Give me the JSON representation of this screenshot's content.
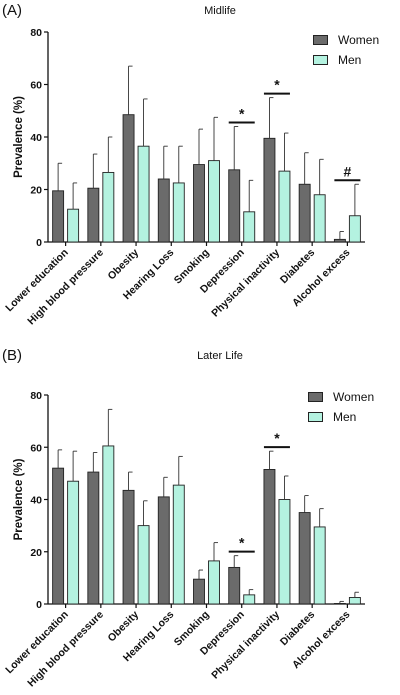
{
  "chart_data": [
    {
      "panel_label": "(A)",
      "title": "Midlife",
      "type": "bar",
      "ylabel": "Prevalence (%)",
      "ylim": [
        0,
        80
      ],
      "yticks": [
        0,
        20,
        40,
        60,
        80
      ],
      "categories": [
        "Lower education",
        "High blood pressure",
        "Obesity",
        "Hearing Loss",
        "Smoking",
        "Depression",
        "Physical inactivity",
        "Diabetes",
        "Alcohol excess"
      ],
      "series": [
        {
          "name": "Women",
          "color": "#6b6b6b",
          "values": [
            19.5,
            20.5,
            48.5,
            24,
            29.5,
            27.5,
            39.5,
            22,
            1
          ],
          "error": [
            10.5,
            13,
            18.5,
            12.5,
            13.5,
            16.5,
            15.5,
            12,
            3
          ]
        },
        {
          "name": "Men",
          "color": "#b4f2e0",
          "values": [
            12.5,
            26.5,
            36.5,
            22.5,
            31,
            11.5,
            27,
            18,
            10
          ],
          "error": [
            10,
            13.5,
            18,
            14,
            16.5,
            12,
            14.5,
            13.5,
            12
          ]
        }
      ],
      "annotations": [
        {
          "category_index": 5,
          "symbol": "*"
        },
        {
          "category_index": 6,
          "symbol": "*"
        },
        {
          "category_index": 8,
          "symbol": "#"
        }
      ],
      "legend_position": "top-right"
    },
    {
      "panel_label": "(B)",
      "title": "Later Life",
      "type": "bar",
      "ylabel": "Prevalence (%)",
      "ylim": [
        0,
        80
      ],
      "yticks": [
        0,
        20,
        40,
        60,
        80
      ],
      "categories": [
        "Lower education",
        "High blood pressure",
        "Obesity",
        "Hearing Loss",
        "Smoking",
        "Depression",
        "Physical inactivity",
        "Diabetes",
        "Alcohol excess"
      ],
      "series": [
        {
          "name": "Women",
          "color": "#6b6b6b",
          "values": [
            52,
            50.5,
            43.5,
            41,
            9.5,
            14,
            51.5,
            35,
            0.2
          ],
          "error": [
            7,
            7.5,
            7,
            7.5,
            3.5,
            4.5,
            7,
            6.5,
            0.8
          ]
        },
        {
          "name": "Men",
          "color": "#b4f2e0",
          "values": [
            47,
            60.5,
            30,
            45.5,
            16.5,
            3.5,
            40,
            29.5,
            2.5
          ],
          "error": [
            11.5,
            14,
            9.5,
            11,
            7,
            2,
            9,
            7,
            2
          ]
        }
      ],
      "annotations": [
        {
          "category_index": 5,
          "symbol": "*"
        },
        {
          "category_index": 6,
          "symbol": "*"
        }
      ],
      "legend_position": "top-right"
    }
  ]
}
